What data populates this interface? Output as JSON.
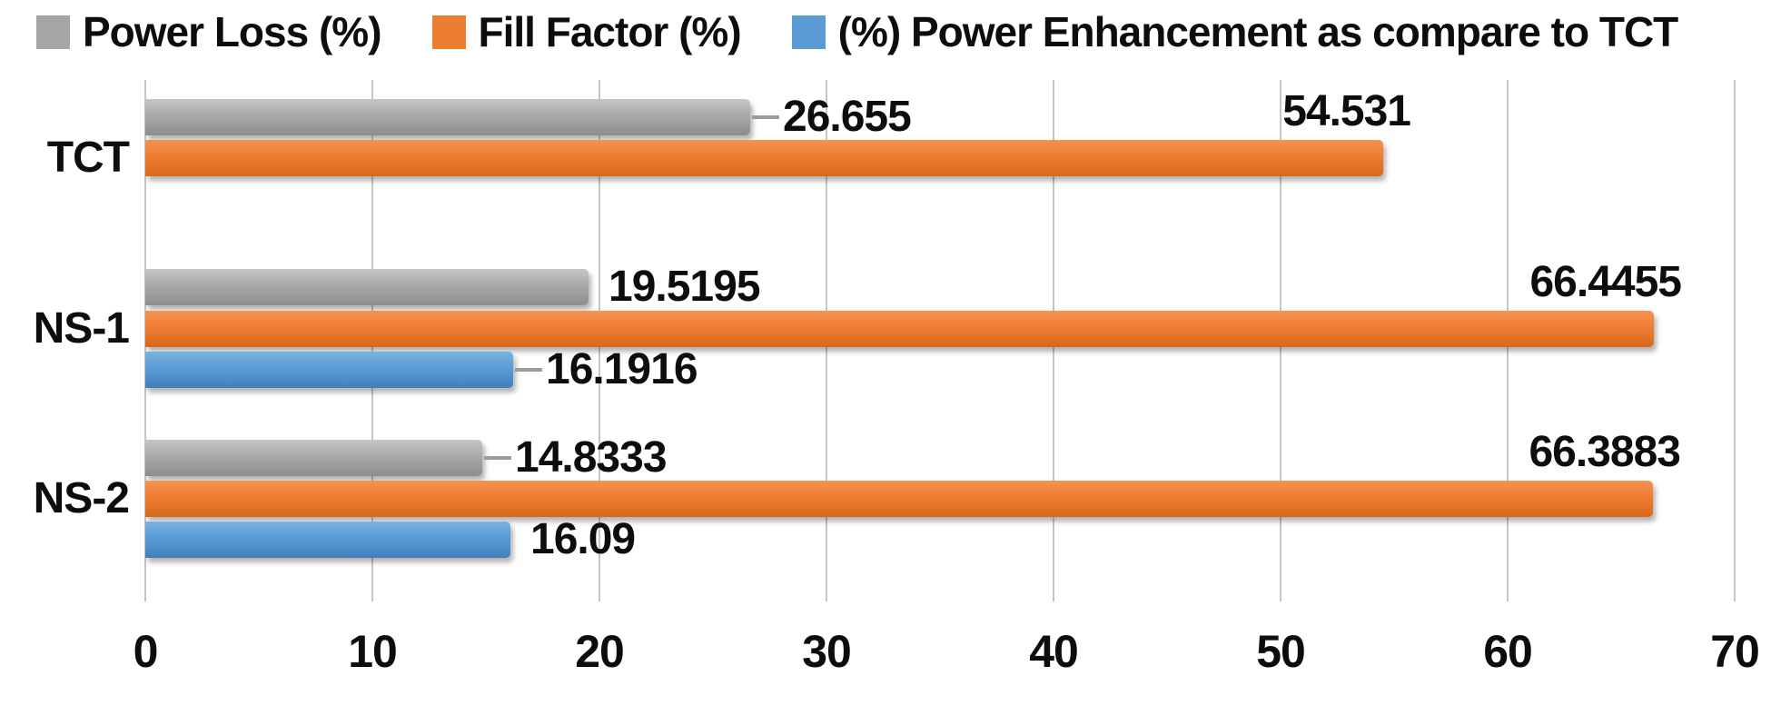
{
  "chart_data": {
    "type": "bar",
    "orientation": "horizontal",
    "title": "",
    "categories": [
      "TCT",
      "NS-1",
      "NS-2"
    ],
    "series": [
      {
        "name": "Power Loss (%)",
        "color": "#a5a5a5",
        "values": [
          26.655,
          19.5195,
          14.8333
        ],
        "data_labels": [
          "26.655",
          "19.5195",
          "14.8333"
        ],
        "leader_lines": [
          true,
          false,
          true
        ]
      },
      {
        "name": "Fill Factor (%)",
        "color": "#ed7d31",
        "values": [
          54.531,
          66.4455,
          66.3883
        ],
        "data_labels": [
          "54.531",
          "66.4455",
          "66.3883"
        ],
        "leader_lines": [
          false,
          false,
          false
        ]
      },
      {
        "name": "(%) Power Enhancement as compare to TCT",
        "color": "#5b9bd5",
        "values": [
          null,
          16.1916,
          16.09
        ],
        "data_labels": [
          null,
          "16.1916",
          "16.09"
        ],
        "leader_lines": [
          false,
          true,
          false
        ]
      }
    ],
    "xlim": [
      0,
      70
    ],
    "xticks": [
      0,
      10,
      20,
      30,
      40,
      50,
      60,
      70
    ],
    "xtick_labels": [
      "0",
      "10",
      "20",
      "30",
      "40",
      "50",
      "60",
      "70"
    ],
    "grid": true,
    "gridline_color": "#c6c6c6",
    "legend_position": "top",
    "background": "#ffffff",
    "text_color": "#0d0d0d"
  }
}
